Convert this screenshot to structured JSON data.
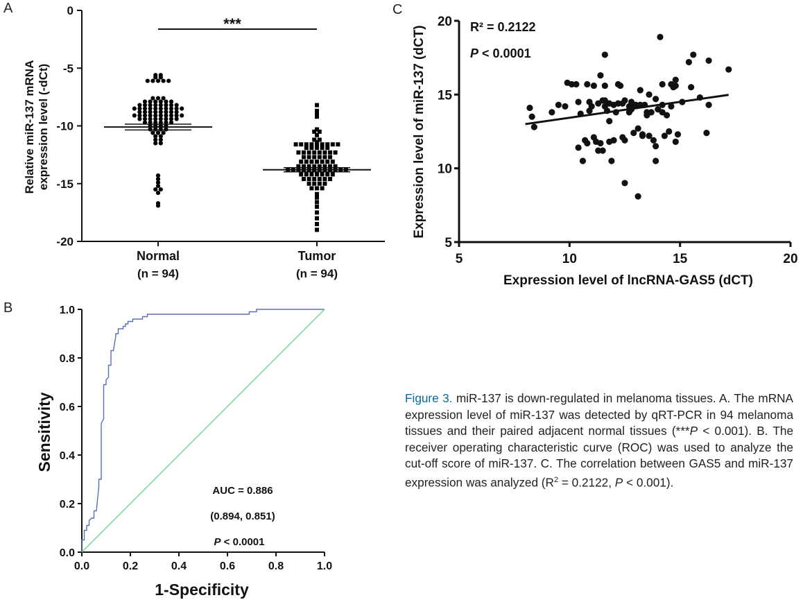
{
  "panels": {
    "a": "A",
    "b": "B",
    "c": "C"
  },
  "caption": {
    "figure_label": "Figure 3.",
    "heading": "miR-137 is down-regulated in melanoma tissues.",
    "text_1": "A. The mRNA expression level of miR-137 was detected by qRT-PCR in 94 melanoma tissues and their paired adjacent normal tissues (***",
    "p1": "P",
    "text_2": " < 0.001). B. The receiver operating characteristic curve (ROC) was used to analyze the cut-off score of miR-137. C. The correlation between GAS5 and miR-137 expression was analyzed (R",
    "sup": "2",
    "text_3": " = 0.2122, ",
    "p2": "P",
    "text_4": " < 0.001)."
  },
  "chart_data": [
    {
      "type": "scatter",
      "panel": "A",
      "ylabel_line1": "Relative miR-137 mRNA",
      "ylabel_line2": "expression level (-dCt)",
      "ylim": [
        -20,
        0
      ],
      "yticks": [
        "0",
        "-5",
        "-10",
        "-15",
        "-20"
      ],
      "categories": [
        "Normal",
        "Tumor"
      ],
      "category_n": [
        "(n = 94)",
        "(n = 94)"
      ],
      "significance": "***",
      "marker_colors": [
        "#000000",
        "#000000"
      ],
      "groups": [
        {
          "name": "Normal",
          "marker": "circle",
          "mean": -10.1,
          "sem": 0.25,
          "values": [
            -5.6,
            -5.6,
            -5.8,
            -5.8,
            -6.1,
            -6.1,
            -6.1,
            -6.1,
            -6.1,
            -7.6,
            -7.6,
            -7.6,
            -7.9,
            -7.9,
            -7.9,
            -7.9,
            -7.9,
            -7.9,
            -8.2,
            -8.2,
            -8.2,
            -8.2,
            -8.2,
            -8.2,
            -8.2,
            -8.2,
            -8.5,
            -8.5,
            -8.5,
            -8.5,
            -8.5,
            -8.5,
            -8.5,
            -8.5,
            -8.5,
            -8.5,
            -8.8,
            -8.8,
            -8.8,
            -8.8,
            -8.8,
            -8.8,
            -8.8,
            -8.8,
            -9.1,
            -9.1,
            -9.1,
            -9.1,
            -9.1,
            -9.1,
            -9.1,
            -9.1,
            -9.1,
            -9.1,
            -9.4,
            -9.4,
            -9.4,
            -9.4,
            -9.4,
            -9.4,
            -9.4,
            -9.4,
            -9.7,
            -9.7,
            -9.7,
            -9.7,
            -9.7,
            -9.7,
            -10.0,
            -10.0,
            -10.0,
            -10.0,
            -10.3,
            -10.3,
            -10.3,
            -10.3,
            -10.6,
            -10.6,
            -10.6,
            -10.9,
            -10.9,
            -11.2,
            -11.2,
            -11.5,
            -11.5,
            -14.3,
            -14.6,
            -14.9,
            -15.2,
            -15.5,
            -15.5,
            -15.8,
            -16.7,
            -16.9
          ]
        },
        {
          "name": "Tumor",
          "marker": "square",
          "mean": -13.8,
          "sem": 0.18,
          "values": [
            -8.2,
            -8.7,
            -9.0,
            -9.2,
            -10.3,
            -10.5,
            -10.5,
            -10.8,
            -11.2,
            -11.2,
            -11.4,
            -11.6,
            -11.6,
            -11.6,
            -11.6,
            -11.6,
            -11.6,
            -11.6,
            -11.6,
            -11.6,
            -11.9,
            -11.9,
            -11.9,
            -11.9,
            -11.9,
            -12.3,
            -12.3,
            -12.3,
            -12.3,
            -12.3,
            -12.3,
            -12.3,
            -12.3,
            -12.7,
            -12.7,
            -12.7,
            -12.7,
            -12.7,
            -12.7,
            -13.1,
            -13.1,
            -13.1,
            -13.1,
            -13.1,
            -13.1,
            -13.1,
            -13.5,
            -13.5,
            -13.5,
            -13.5,
            -13.5,
            -13.5,
            -13.5,
            -13.5,
            -13.8,
            -13.8,
            -13.8,
            -13.8,
            -13.8,
            -13.8,
            -13.8,
            -13.8,
            -13.8,
            -13.8,
            -13.8,
            -13.8,
            -14.2,
            -14.2,
            -14.2,
            -14.2,
            -14.2,
            -14.2,
            -14.2,
            -14.6,
            -14.6,
            -14.6,
            -14.6,
            -14.6,
            -14.6,
            -15.0,
            -15.0,
            -15.0,
            -15.0,
            -15.4,
            -15.4,
            -15.4,
            -15.9,
            -16.2,
            -16.6,
            -17.0,
            -17.5,
            -18.0,
            -18.5,
            -19.0
          ]
        }
      ]
    },
    {
      "type": "line",
      "panel": "B",
      "xlabel": "1-Specificity",
      "ylabel": "Sensitivity",
      "xlim": [
        0,
        1.0
      ],
      "ylim": [
        0,
        1.0
      ],
      "xticks": [
        "0.0",
        "0.2",
        "0.4",
        "0.6",
        "0.8",
        "1.0"
      ],
      "yticks": [
        "0.0",
        "0.2",
        "0.4",
        "0.6",
        "0.8",
        "1.0"
      ],
      "annotations": [
        "AUC = 0.886",
        "(0.894, 0.851)",
        "P < 0.0001"
      ],
      "series": [
        {
          "color": "#5b6fb5",
          "x": [
            0,
            0,
            0.01,
            0.01,
            0.02,
            0.02,
            0.03,
            0.03,
            0.04,
            0.05,
            0.05,
            0.06,
            0.07,
            0.07,
            0.08,
            0.08,
            0.09,
            0.09,
            0.1,
            0.1,
            0.11,
            0.11,
            0.12,
            0.12,
            0.13,
            0.14,
            0.14,
            0.15,
            0.15,
            0.17,
            0.17,
            0.18,
            0.18,
            0.19,
            0.19,
            0.21,
            0.21,
            0.25,
            0.25,
            0.27,
            0.27,
            0.35,
            0.35,
            0.69,
            0.69,
            0.72,
            0.72,
            0.82,
            0.82,
            1.0
          ],
          "y": [
            0,
            0.05,
            0.05,
            0.09,
            0.09,
            0.11,
            0.11,
            0.13,
            0.14,
            0.14,
            0.17,
            0.17,
            0.27,
            0.3,
            0.3,
            0.53,
            0.55,
            0.69,
            0.69,
            0.71,
            0.72,
            0.77,
            0.77,
            0.83,
            0.83,
            0.89,
            0.9,
            0.9,
            0.92,
            0.92,
            0.93,
            0.93,
            0.94,
            0.94,
            0.95,
            0.95,
            0.96,
            0.96,
            0.97,
            0.97,
            0.98,
            0.98,
            0.98,
            0.98,
            0.99,
            0.99,
            1.0,
            1.0,
            1.0,
            1.0
          ]
        },
        {
          "color": "#6dd58a",
          "x": [
            0,
            1.0
          ],
          "y": [
            0,
            1.0
          ]
        }
      ]
    },
    {
      "type": "scatter",
      "panel": "C",
      "xlabel": "Expression level of lncRNA-GAS5 (dCT)",
      "ylabel": "Expression level of miR-137 (dCT)",
      "xlim": [
        5,
        20
      ],
      "ylim": [
        5,
        20
      ],
      "xticks": [
        "5",
        "10",
        "15",
        "20"
      ],
      "yticks": [
        "5",
        "10",
        "15",
        "20"
      ],
      "r2_label": "R² = 0.2122",
      "p_italic": "P",
      "p_rest": " < 0.0001",
      "fit_line": {
        "x": [
          8,
          17.2
        ],
        "y": [
          13.0,
          14.98
        ]
      },
      "points": [
        [
          8.2,
          14.1
        ],
        [
          8.3,
          13.5
        ],
        [
          8.4,
          12.8
        ],
        [
          9.2,
          13.8
        ],
        [
          9.5,
          14.3
        ],
        [
          9.8,
          14.2
        ],
        [
          9.9,
          15.8
        ],
        [
          10.1,
          15.7
        ],
        [
          10.3,
          15.7
        ],
        [
          10.4,
          14.5
        ],
        [
          10.4,
          11.4
        ],
        [
          10.5,
          13.7
        ],
        [
          10.6,
          10.5
        ],
        [
          10.7,
          11.9
        ],
        [
          10.8,
          15.7
        ],
        [
          10.9,
          14.5
        ],
        [
          10.8,
          11.7
        ],
        [
          10.9,
          13.9
        ],
        [
          11.0,
          14.2
        ],
        [
          11.1,
          15.6
        ],
        [
          11.1,
          12.1
        ],
        [
          11.2,
          11.8
        ],
        [
          11.3,
          14.4
        ],
        [
          11.3,
          11.2
        ],
        [
          11.4,
          11.7
        ],
        [
          11.4,
          16.3
        ],
        [
          11.5,
          11.2
        ],
        [
          11.5,
          14.6
        ],
        [
          11.6,
          15.6
        ],
        [
          11.6,
          14.2
        ],
        [
          11.6,
          14.6
        ],
        [
          11.6,
          17.7
        ],
        [
          11.7,
          13.9
        ],
        [
          11.8,
          14.4
        ],
        [
          11.8,
          13.2
        ],
        [
          11.8,
          11.8
        ],
        [
          11.9,
          10.5
        ],
        [
          12.0,
          14.3
        ],
        [
          12.0,
          11.9
        ],
        [
          12.1,
          13.8
        ],
        [
          12.2,
          15.7
        ],
        [
          12.2,
          14.4
        ],
        [
          12.3,
          15.6
        ],
        [
          12.4,
          14.4
        ],
        [
          12.4,
          12.1
        ],
        [
          12.5,
          14.6
        ],
        [
          12.5,
          9.0
        ],
        [
          12.5,
          11.9
        ],
        [
          12.7,
          13.8
        ],
        [
          12.7,
          14.2
        ],
        [
          12.8,
          14.0
        ],
        [
          12.8,
          14.5
        ],
        [
          12.9,
          12.4
        ],
        [
          12.9,
          14.3
        ],
        [
          13.0,
          14.3
        ],
        [
          13.1,
          12.7
        ],
        [
          13.1,
          8.1
        ],
        [
          13.2,
          14.3
        ],
        [
          13.2,
          15.3
        ],
        [
          13.3,
          12.2
        ],
        [
          13.3,
          12.3
        ],
        [
          13.4,
          14.3
        ],
        [
          13.5,
          13.8
        ],
        [
          13.5,
          13.6
        ],
        [
          13.6,
          15.0
        ],
        [
          13.6,
          12.2
        ],
        [
          13.7,
          13.8
        ],
        [
          13.8,
          11.9
        ],
        [
          13.9,
          11.5
        ],
        [
          13.9,
          10.5
        ],
        [
          13.9,
          14.7
        ],
        [
          14.0,
          14.0
        ],
        [
          14.1,
          18.9
        ],
        [
          14.2,
          15.7
        ],
        [
          14.2,
          14.3
        ],
        [
          14.2,
          13.8
        ],
        [
          14.3,
          12.2
        ],
        [
          14.4,
          13.6
        ],
        [
          14.5,
          12.5
        ],
        [
          14.6,
          14.2
        ],
        [
          14.6,
          15.7
        ],
        [
          14.7,
          15.5
        ],
        [
          14.8,
          16.0
        ],
        [
          14.8,
          15.6
        ],
        [
          14.8,
          11.8
        ],
        [
          14.9,
          12.3
        ],
        [
          15.1,
          14.5
        ],
        [
          15.4,
          17.2
        ],
        [
          15.5,
          15.5
        ],
        [
          15.6,
          17.7
        ],
        [
          15.9,
          14.8
        ],
        [
          16.2,
          12.4
        ],
        [
          16.3,
          14.3
        ],
        [
          16.3,
          17.3
        ],
        [
          17.2,
          16.7
        ]
      ]
    }
  ]
}
